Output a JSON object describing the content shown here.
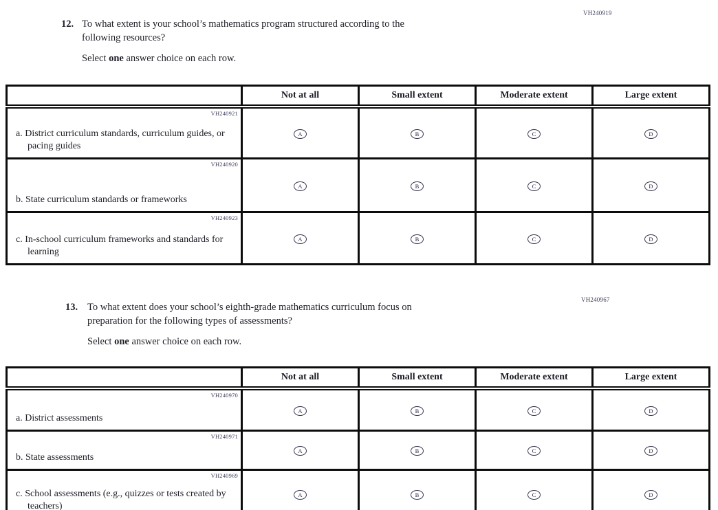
{
  "option_letters": [
    "A",
    "B",
    "C",
    "D"
  ],
  "questions": [
    {
      "number": "12.",
      "code": "VH240919",
      "lines": [
        "To what extent is your school’s mathematics program structured according to the",
        "following resources?"
      ],
      "instruction": {
        "prefix": "Select ",
        "bold": "one",
        "suffix": " answer choice on each row."
      },
      "table": {
        "headers": [
          "Not at all",
          "Small extent",
          "Moderate extent",
          "Large extent"
        ],
        "rows": [
          {
            "code": "VH240921",
            "letter": "a.",
            "text": "District curriculum standards, curriculum guides, or pacing guides"
          },
          {
            "code": "VH240920",
            "letter": "b.",
            "text": "State curriculum standards or frameworks"
          },
          {
            "code": "VH240923",
            "letter": "c.",
            "text": "In-school curriculum frameworks and standards for learning"
          }
        ]
      }
    },
    {
      "number": "13.",
      "code": "VH240967",
      "lines": [
        "To what extent does your school’s eighth-grade mathematics curriculum focus on",
        "preparation for the following types of assessments?"
      ],
      "instruction": {
        "prefix": "Select ",
        "bold": "one",
        "suffix": " answer choice on each row."
      },
      "table": {
        "headers": [
          "Not at all",
          "Small extent",
          "Moderate extent",
          "Large extent"
        ],
        "rows": [
          {
            "code": "VH240970",
            "letter": "a.",
            "text": "District assessments"
          },
          {
            "code": "VH240971",
            "letter": "b.",
            "text": "State assessments"
          },
          {
            "code": "VH240969",
            "letter": "c.",
            "text": "School assessments (e.g., quizzes or tests created by teachers)"
          }
        ]
      }
    }
  ]
}
